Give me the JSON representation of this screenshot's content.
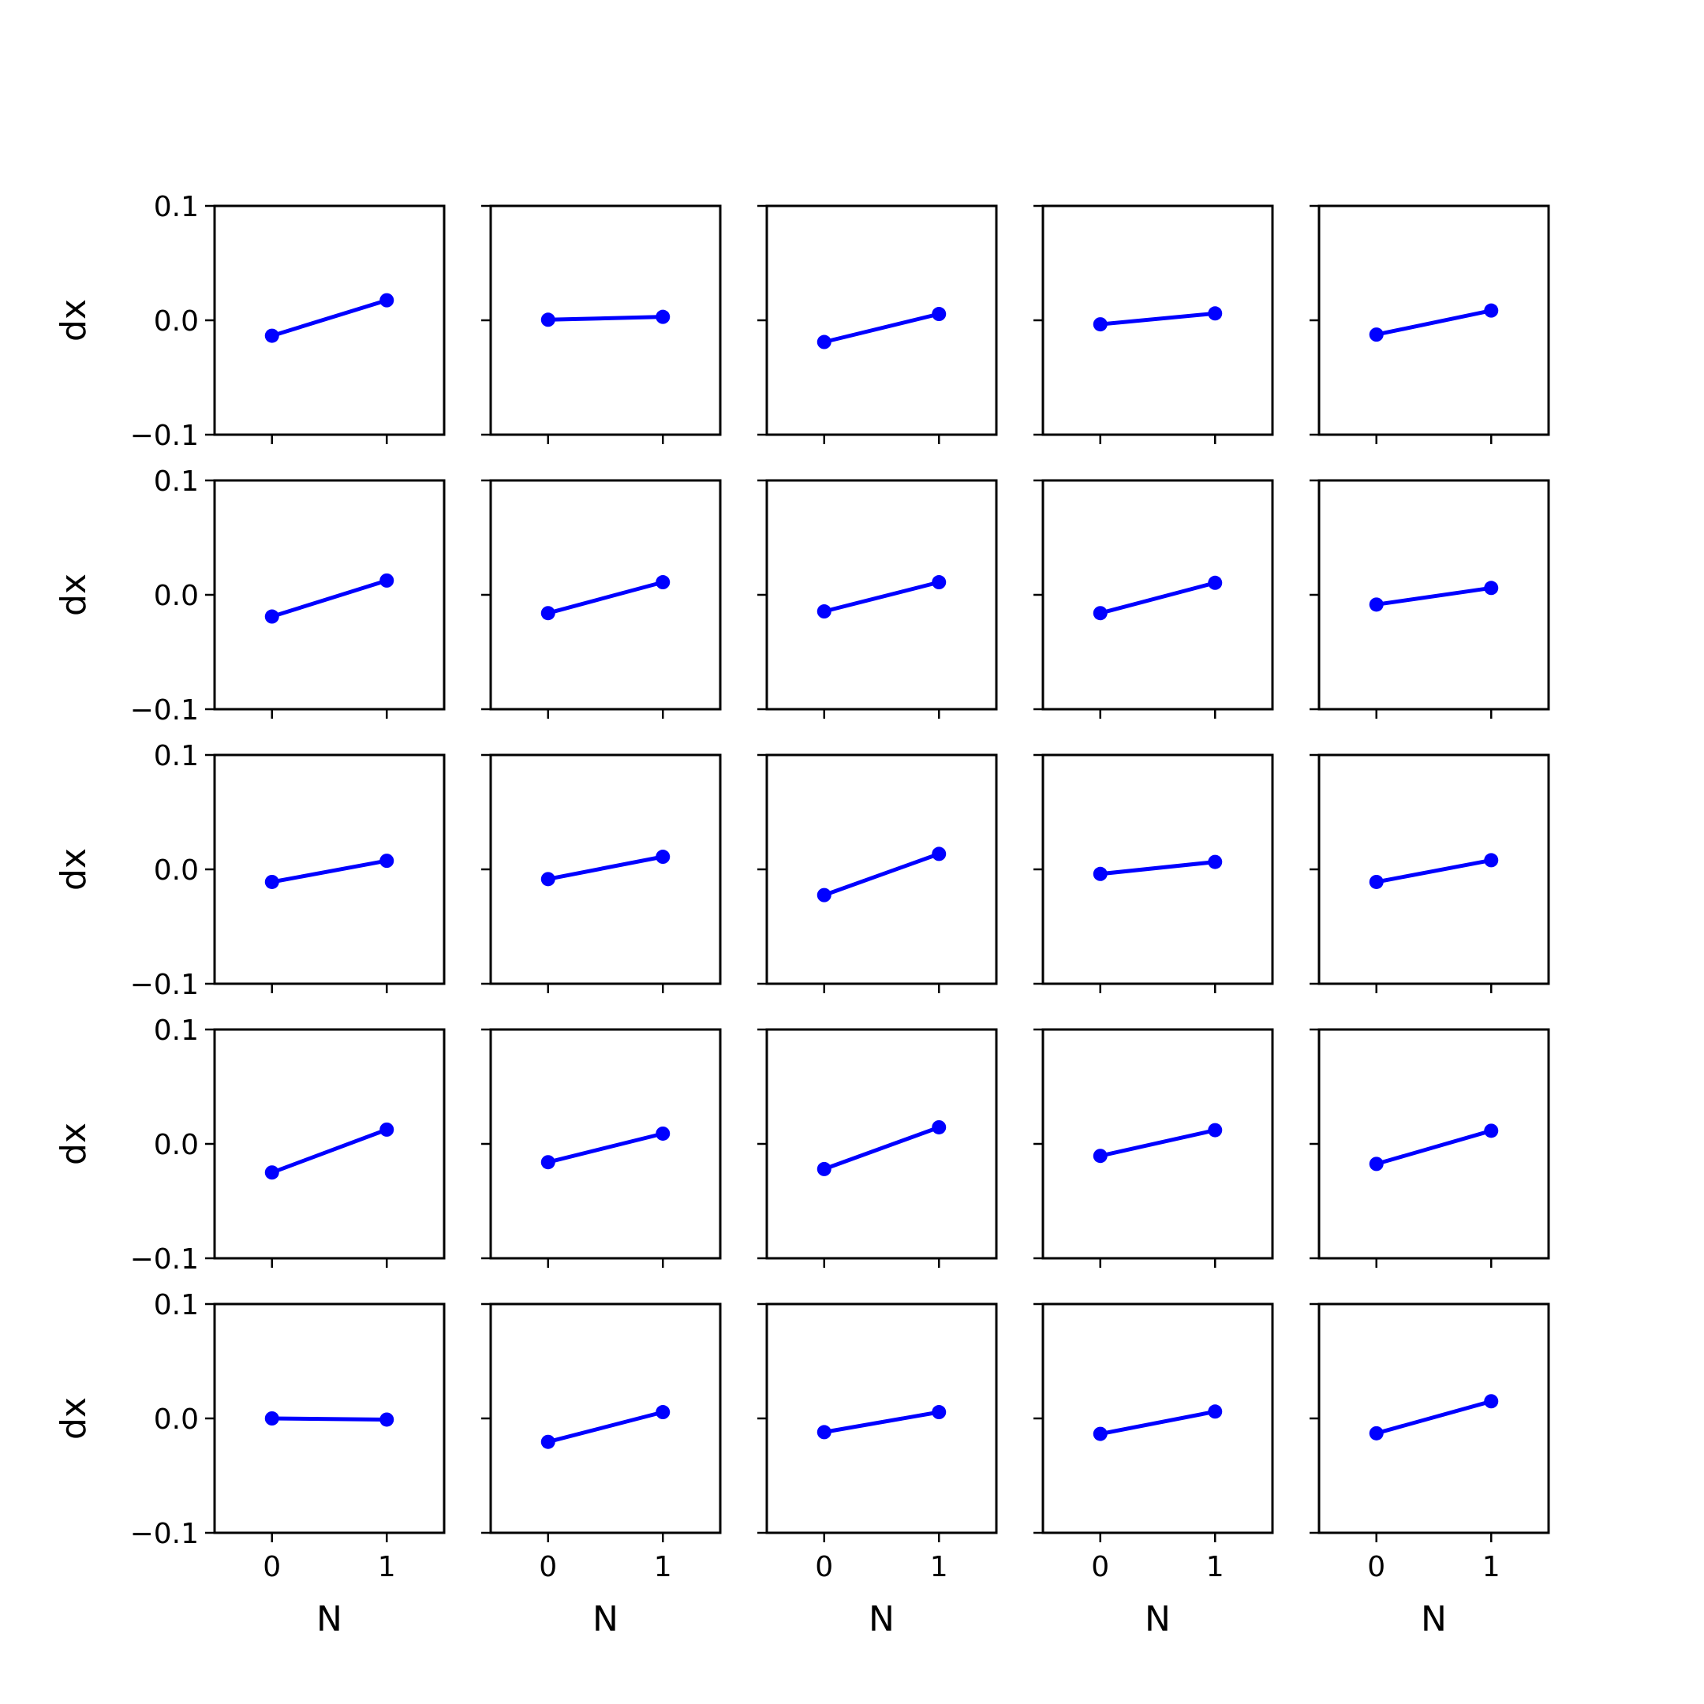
{
  "chart_data": {
    "type": "line",
    "layout": "5x5 grid of subplots, shared axes",
    "xlabel": "N",
    "ylabel": "dx",
    "x": [
      0,
      1
    ],
    "xticks": [
      "0",
      "1"
    ],
    "xlim": [
      -0.5,
      1.5
    ],
    "ylim": [
      -0.1,
      0.1
    ],
    "yticks": [
      "0.1",
      "0.0",
      "−0.1"
    ],
    "ytick_values": [
      0.1,
      0.0,
      -0.1
    ],
    "grid": false,
    "line_color": "#0000ff",
    "marker": "circle",
    "series": [
      {
        "values": [
          -0.0135,
          0.0175
        ]
      },
      {
        "values": [
          0.0005,
          0.003
        ]
      },
      {
        "values": [
          -0.019,
          0.0055
        ]
      },
      {
        "values": [
          -0.0035,
          0.006
        ]
      },
      {
        "values": [
          -0.0125,
          0.0085
        ]
      },
      {
        "values": [
          -0.019,
          0.0125
        ]
      },
      {
        "values": [
          -0.016,
          0.011
        ]
      },
      {
        "values": [
          -0.0145,
          0.011
        ]
      },
      {
        "values": [
          -0.016,
          0.0105
        ]
      },
      {
        "values": [
          -0.0085,
          0.006
        ]
      },
      {
        "values": [
          -0.011,
          0.0075
        ]
      },
      {
        "values": [
          -0.0085,
          0.011
        ]
      },
      {
        "values": [
          -0.0225,
          0.0135
        ]
      },
      {
        "values": [
          -0.004,
          0.0065
        ]
      },
      {
        "values": [
          -0.011,
          0.008
        ]
      },
      {
        "values": [
          -0.025,
          0.0125
        ]
      },
      {
        "values": [
          -0.016,
          0.009
        ]
      },
      {
        "values": [
          -0.022,
          0.0145
        ]
      },
      {
        "values": [
          -0.0105,
          0.012
        ]
      },
      {
        "values": [
          -0.0175,
          0.0115
        ]
      },
      {
        "values": [
          0.0,
          -0.001
        ]
      },
      {
        "values": [
          -0.0205,
          0.0055
        ]
      },
      {
        "values": [
          -0.012,
          0.0055
        ]
      },
      {
        "values": [
          -0.0135,
          0.006
        ]
      },
      {
        "values": [
          -0.013,
          0.015
        ]
      }
    ]
  }
}
